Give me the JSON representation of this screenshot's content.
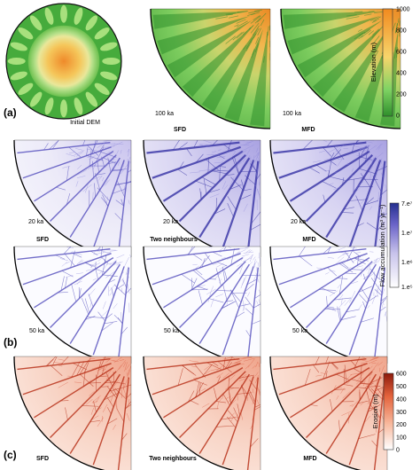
{
  "panel_labels": {
    "a": "(a)",
    "b": "(b)",
    "c": "(c)"
  },
  "row_a": {
    "initial_label": "Initial DEM",
    "time_label": "100 ka",
    "methods": [
      "SFD",
      "MFD"
    ],
    "colorbar": {
      "title": "Elevation (m)",
      "ticks": [
        "1000",
        "800",
        "600",
        "400",
        "200",
        "0"
      ],
      "colors": [
        "#f18a1f",
        "#f7d56b",
        "#7fd363",
        "#2f8f2c"
      ]
    }
  },
  "row_b": {
    "time_labels": [
      "20 ka",
      "50 ka"
    ],
    "methods": [
      "SFD",
      "Two neighbours",
      "MFD"
    ],
    "colorbar": {
      "title": "Flow accumulation (m³ yr⁻¹)",
      "ticks": [
        "7.e⁷",
        "1.e⁷",
        "1.e⁶",
        "1.e⁵"
      ],
      "colors": [
        "#ffffff",
        "#c9c4ec",
        "#6a63c8",
        "#242f8f"
      ]
    }
  },
  "row_c": {
    "methods": [
      "SFD",
      "Two neighbours",
      "MFD"
    ],
    "colorbar": {
      "title": "Erosion (m)",
      "ticks": [
        "600",
        "500",
        "400",
        "300",
        "200",
        "100",
        "0"
      ],
      "colors": [
        "#ffffff",
        "#f7b69a",
        "#e4633c",
        "#8c1a0c"
      ]
    }
  }
}
